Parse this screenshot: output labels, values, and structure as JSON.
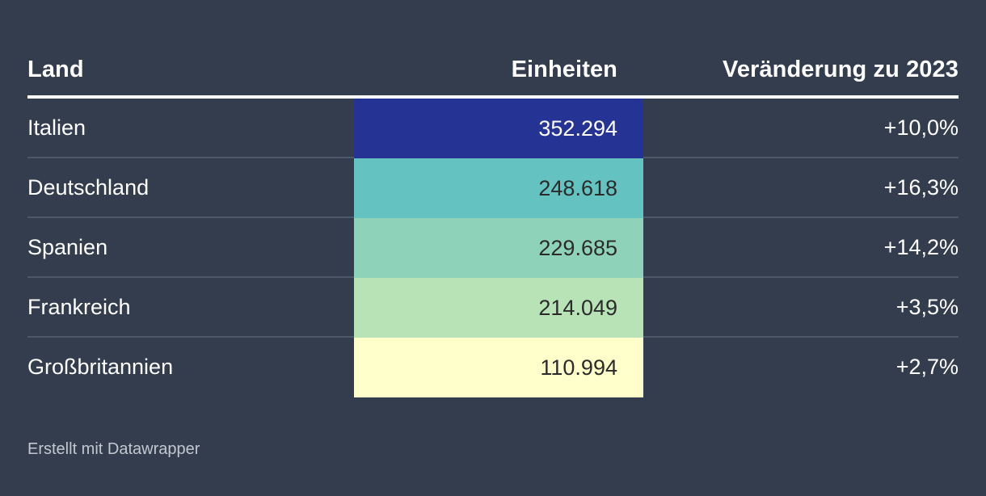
{
  "table": {
    "headers": {
      "land": "Land",
      "units": "Einheiten",
      "change": "Veränderung zu 2023"
    },
    "rows": [
      {
        "land": "Italien",
        "units": "352.294",
        "change": "+10,0%",
        "bg": "#253494",
        "fg": "#ffffff"
      },
      {
        "land": "Deutschland",
        "units": "248.618",
        "change": "+16,3%",
        "bg": "#64c2c0",
        "fg": "#2b2b2b"
      },
      {
        "land": "Spanien",
        "units": "229.685",
        "change": "+14,2%",
        "bg": "#8fd2ba",
        "fg": "#2b2b2b"
      },
      {
        "land": "Frankreich",
        "units": "214.049",
        "change": "+3,5%",
        "bg": "#b8e3b6",
        "fg": "#2b2b2b"
      },
      {
        "land": "Großbritannien",
        "units": "110.994",
        "change": "+2,7%",
        "bg": "#ffffcc",
        "fg": "#2b2b2b"
      }
    ]
  },
  "footer": {
    "credit": "Erstellt mit Datawrapper"
  },
  "chart_data": {
    "type": "table",
    "columns": [
      "Land",
      "Einheiten",
      "Veränderung zu 2023"
    ],
    "categories": [
      "Italien",
      "Deutschland",
      "Spanien",
      "Frankreich",
      "Großbritannien"
    ],
    "series": [
      {
        "name": "Einheiten",
        "values": [
          352294,
          248618,
          229685,
          214049,
          110994
        ]
      },
      {
        "name": "Veränderung zu 2023",
        "values": [
          10.0,
          16.3,
          14.2,
          3.5,
          2.7
        ]
      }
    ],
    "colors": [
      "#253494",
      "#64c2c0",
      "#8fd2ba",
      "#b8e3b6",
      "#ffffcc"
    ]
  }
}
